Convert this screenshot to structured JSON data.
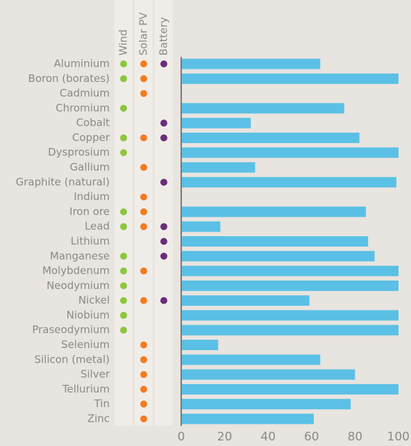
{
  "chart_data": {
    "type": "bar",
    "categories": [
      "Aluminium",
      "Boron (borates)",
      "Cadmium",
      "Chromium",
      "Cobalt",
      "Copper",
      "Dysprosium",
      "Gallium",
      "Graphite (natural)",
      "Indium",
      "Iron ore",
      "Lead",
      "Lithium",
      "Manganese",
      "Molybdenum",
      "Neodymium",
      "Nickel",
      "Niobium",
      "Praseodymium",
      "Selenium",
      "Silicon (metal)",
      "Silver",
      "Tellurium",
      "Tin",
      "Zinc"
    ],
    "values": [
      64,
      100,
      null,
      75,
      32,
      82,
      100,
      34,
      99,
      null,
      85,
      18,
      86,
      89,
      100,
      100,
      59,
      100,
      100,
      17,
      64,
      80,
      100,
      78,
      61
    ],
    "color": "#5bc0e5",
    "xlim": [
      0,
      100
    ],
    "xticks": [
      0,
      20,
      40,
      60,
      80,
      100
    ],
    "technologies": [
      {
        "name": "Wind",
        "color": "#8dc63f",
        "used": [
          true,
          true,
          false,
          true,
          false,
          true,
          true,
          false,
          false,
          false,
          true,
          true,
          false,
          true,
          true,
          true,
          true,
          true,
          true,
          false,
          false,
          false,
          false,
          false,
          false
        ]
      },
      {
        "name": "Solar PV",
        "color": "#f47b20",
        "used": [
          true,
          true,
          true,
          false,
          false,
          true,
          false,
          true,
          false,
          true,
          true,
          true,
          false,
          false,
          true,
          false,
          true,
          false,
          false,
          true,
          true,
          true,
          true,
          true,
          true
        ]
      },
      {
        "name": "Battery",
        "color": "#6b2c7a",
        "used": [
          true,
          false,
          false,
          false,
          true,
          true,
          false,
          false,
          true,
          false,
          false,
          true,
          true,
          true,
          false,
          false,
          true,
          false,
          false,
          false,
          false,
          false,
          false,
          false,
          false
        ]
      }
    ]
  }
}
